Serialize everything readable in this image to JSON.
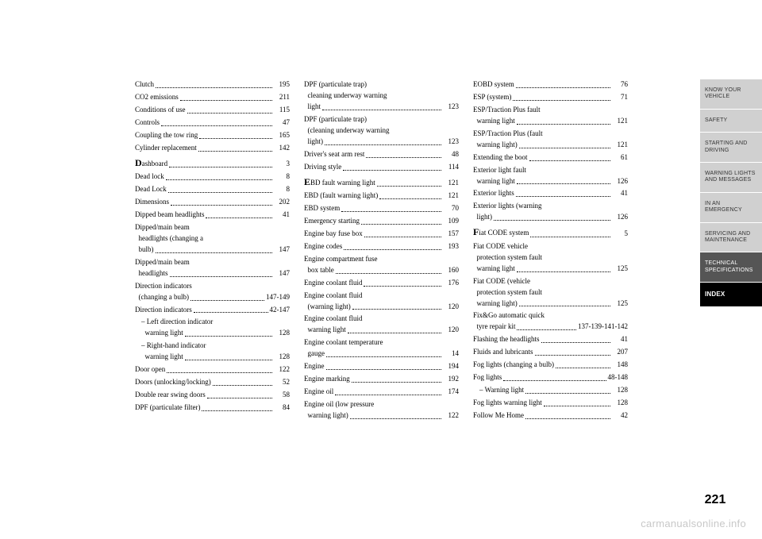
{
  "page_number": "221",
  "watermark": "carmanualsonline.info",
  "tabs": [
    {
      "label": "KNOW YOUR VEHICLE",
      "style": "inactive"
    },
    {
      "label": "SAFETY",
      "style": "inactive"
    },
    {
      "label": "STARTING AND DRIVING",
      "style": "inactive"
    },
    {
      "label": "WARNING LIGHTS AND MESSAGES",
      "style": "inactive"
    },
    {
      "label": "IN AN EMERGENCY",
      "style": "inactive"
    },
    {
      "label": "SERVICING AND MAINTENANCE",
      "style": "inactive"
    },
    {
      "label": "TECHNICAL SPECIFICATIONS",
      "style": "dark"
    },
    {
      "label": "INDEX",
      "style": "active"
    }
  ],
  "columns": [
    [
      {
        "label": "Clutch",
        "page": "195"
      },
      {
        "label": "CO2 emissions",
        "page": "211"
      },
      {
        "label": "Conditions of use",
        "page": "115"
      },
      {
        "label": "Controls",
        "page": "47"
      },
      {
        "label": "Coupling the tow ring",
        "page": "165"
      },
      {
        "label": "Cylinder replacement",
        "page": "142"
      },
      {
        "label": "Dashboard",
        "page": "3",
        "dropcap": "D"
      },
      {
        "label": "Dead lock",
        "page": "8"
      },
      {
        "label": "Dead Lock",
        "page": "8"
      },
      {
        "label": "Dimensions",
        "page": "202"
      },
      {
        "label": "Dipped beam headlights",
        "page": "41"
      },
      {
        "label": "Dipped/main beam headlights (changing a bulb)",
        "page": "147",
        "wrap": true
      },
      {
        "label": "Dipped/main beam headlights",
        "page": "147",
        "wrap": true
      },
      {
        "label": "Direction indicators (changing a bulb)",
        "page": "147-149",
        "wrap": true
      },
      {
        "label": "Direction indicators",
        "page": "42-147"
      },
      {
        "label": "– Left direction indicator warning light",
        "page": "128",
        "sub": true,
        "wrap": true
      },
      {
        "label": "– Right-hand indicator warning light",
        "page": "128",
        "sub": true,
        "wrap": true
      },
      {
        "label": "Door open",
        "page": "122"
      },
      {
        "label": "Doors (unlocking/locking)",
        "page": "52"
      },
      {
        "label": "Double rear swing doors",
        "page": "58"
      },
      {
        "label": "DPF (particulate filter)",
        "page": "84"
      }
    ],
    [
      {
        "label": "DPF (particulate trap) cleaning underway warning light",
        "page": "123",
        "wrap": true
      },
      {
        "label": "DPF (particulate trap) (cleaning underway warning light)",
        "page": "123",
        "wrap": true
      },
      {
        "label": "Driver's seat arm rest",
        "page": "48"
      },
      {
        "label": "Driving style",
        "page": "114"
      },
      {
        "label": "EBD fault warning light",
        "page": "121",
        "dropcap": "E"
      },
      {
        "label": "EBD (fault warning light)",
        "page": "121"
      },
      {
        "label": "EBD system",
        "page": "70"
      },
      {
        "label": "Emergency starting",
        "page": "109"
      },
      {
        "label": "Engine bay fuse box",
        "page": "157"
      },
      {
        "label": "Engine codes",
        "page": "193"
      },
      {
        "label": "Engine compartment fuse box table",
        "page": "160",
        "wrap": true
      },
      {
        "label": "Engine coolant fluid",
        "page": "176"
      },
      {
        "label": "Engine coolant fluid (warning light)",
        "page": "120",
        "wrap": true
      },
      {
        "label": "Engine coolant fluid warning light",
        "page": "120",
        "wrap": true
      },
      {
        "label": "Engine coolant temperature gauge",
        "page": "14",
        "wrap": true
      },
      {
        "label": "Engine",
        "page": "194"
      },
      {
        "label": "Engine marking",
        "page": "192"
      },
      {
        "label": "Engine oil",
        "page": "174"
      },
      {
        "label": "Engine oil (low pressure warning light)",
        "page": "122",
        "wrap": true
      }
    ],
    [
      {
        "label": "EOBD system",
        "page": "76"
      },
      {
        "label": "ESP (system)",
        "page": "71"
      },
      {
        "label": "ESP/Traction Plus fault warning light",
        "page": "121",
        "wrap": true
      },
      {
        "label": "ESP/Traction Plus (fault warning light)",
        "page": "121",
        "wrap": true
      },
      {
        "label": "Extending the boot",
        "page": "61"
      },
      {
        "label": "Exterior light fault warning light",
        "page": "126",
        "wrap": true
      },
      {
        "label": "Exterior lights",
        "page": "41"
      },
      {
        "label": "Exterior lights (warning light)",
        "page": "126",
        "wrap": true
      },
      {
        "label": "Fiat CODE system",
        "page": "5",
        "dropcap": "F"
      },
      {
        "label": "Fiat CODE vehicle protection system fault warning light",
        "page": "125",
        "wrap": true
      },
      {
        "label": "Fiat CODE (vehicle protection system fault warning light)",
        "page": "125",
        "wrap": true
      },
      {
        "label": "Fix&Go automatic quick tyre repair kit",
        "page": "137-139-141-142",
        "wrap": true
      },
      {
        "label": "Flashing the headlights",
        "page": "41"
      },
      {
        "label": "Fluids and lubricants",
        "page": "207"
      },
      {
        "label": "Fog lights (changing a bulb)",
        "page": "148"
      },
      {
        "label": "Fog lights",
        "page": "48-148"
      },
      {
        "label": "– Warning light",
        "page": "128",
        "sub": true
      },
      {
        "label": "Fog lights warning light",
        "page": "128"
      },
      {
        "label": "Follow Me Home",
        "page": "42"
      }
    ]
  ]
}
